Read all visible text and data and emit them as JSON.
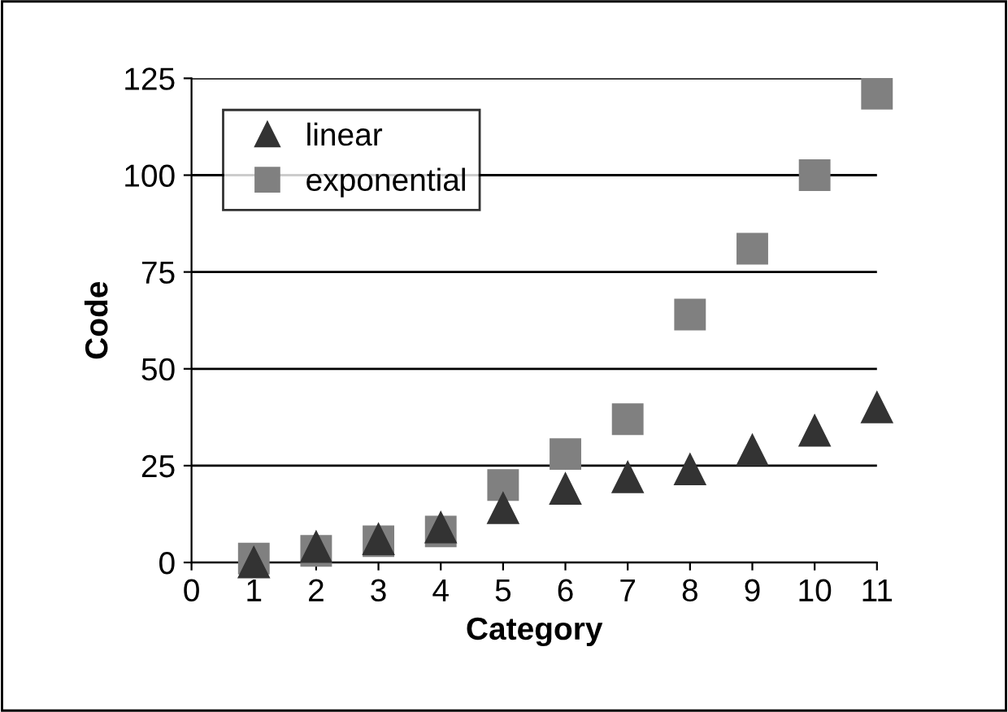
{
  "chart_data": {
    "type": "scatter",
    "xlabel": "Category",
    "ylabel": "Code",
    "x": [
      1,
      2,
      3,
      4,
      5,
      6,
      7,
      8,
      9,
      10,
      11
    ],
    "series": [
      {
        "name": "linear",
        "color": "#333333",
        "marker": "triangle",
        "values": [
          0,
          4,
          6,
          9,
          14,
          19,
          22,
          24,
          29,
          34,
          40
        ]
      },
      {
        "name": "exponential",
        "color": "#808080",
        "marker": "square",
        "values": [
          1,
          3,
          5.5,
          8,
          20,
          28,
          37,
          64,
          81,
          100,
          121
        ]
      }
    ],
    "xlim": [
      0,
      11
    ],
    "xticks": [
      0,
      1,
      2,
      3,
      4,
      5,
      6,
      7,
      8,
      9,
      10,
      11
    ],
    "ylim": [
      0,
      125
    ],
    "yticks": [
      0,
      25,
      50,
      75,
      100,
      125
    ],
    "grid": "y",
    "legend": "top left"
  }
}
